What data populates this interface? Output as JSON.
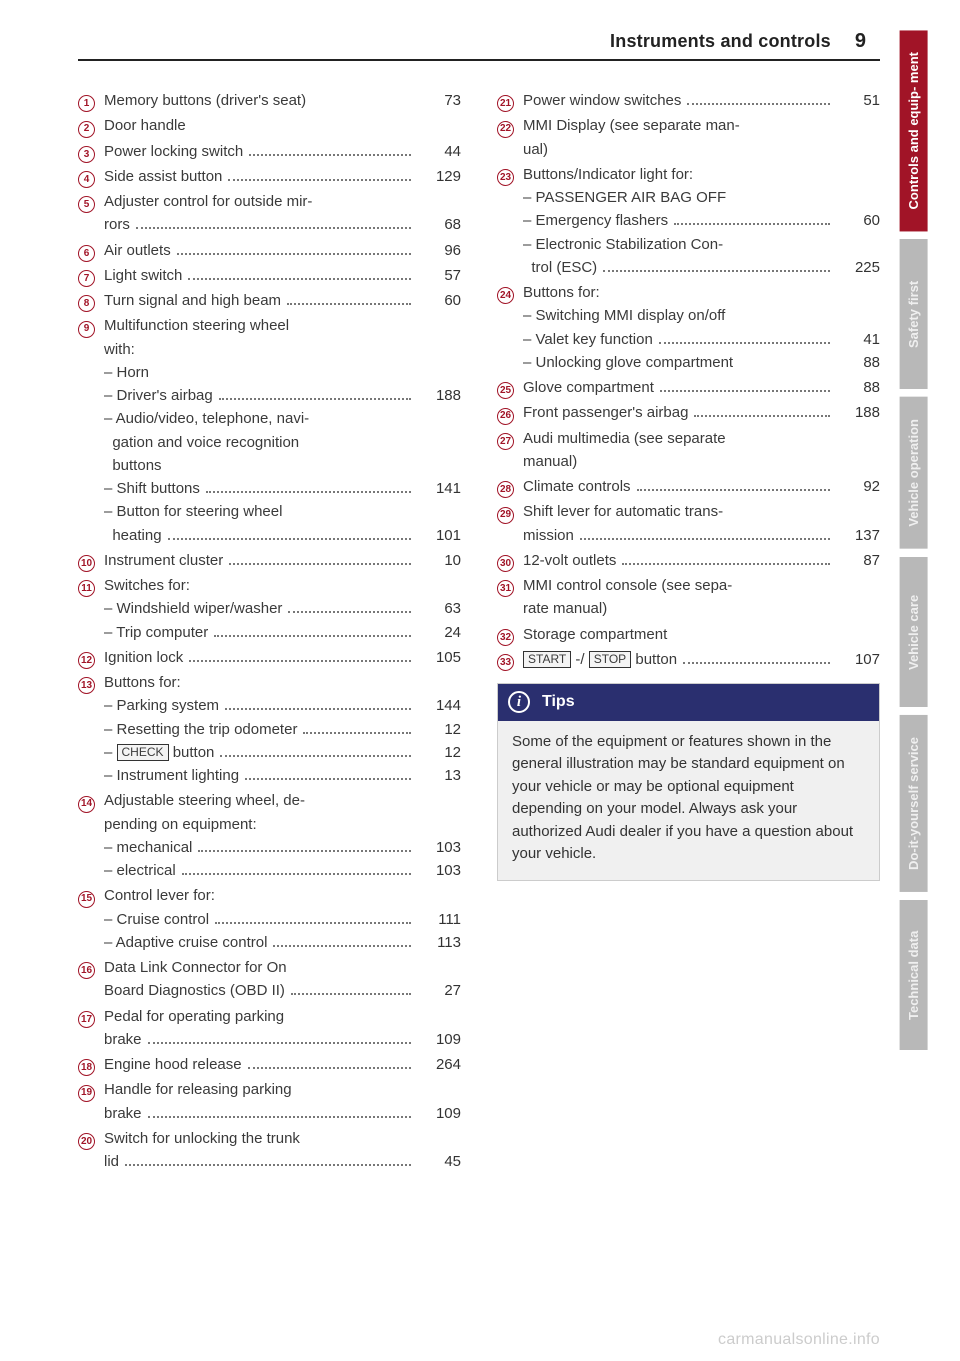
{
  "header": {
    "title": "Instruments and controls",
    "page": "9"
  },
  "watermark": "carmanualsonline.info",
  "colors": {
    "accent": "#a11427",
    "tab_inactive_bg": "#b8b8b8",
    "tips_bg": "#2a2f6f"
  },
  "tabs": [
    {
      "label": "Controls and equip-\nment",
      "active": true
    },
    {
      "label": "Safety first",
      "active": false
    },
    {
      "label": "Vehicle operation",
      "active": false
    },
    {
      "label": "Vehicle care",
      "active": false
    },
    {
      "label": "Do-it-yourself\nservice",
      "active": false
    },
    {
      "label": "Technical data",
      "active": false
    }
  ],
  "left": [
    {
      "n": "1",
      "rows": [
        {
          "t": "Memory buttons (driver's seat)",
          "p": "73",
          "nodots": true
        }
      ]
    },
    {
      "n": "2",
      "rows": [
        {
          "t": "Door handle"
        }
      ]
    },
    {
      "n": "3",
      "rows": [
        {
          "t": "Power locking switch",
          "p": "44"
        }
      ]
    },
    {
      "n": "4",
      "rows": [
        {
          "t": "Side assist button",
          "p": "129"
        }
      ]
    },
    {
      "n": "5",
      "rows": [
        {
          "t": "Adjuster control for outside mir-"
        },
        {
          "t": "rors",
          "p": "68"
        }
      ]
    },
    {
      "n": "6",
      "rows": [
        {
          "t": "Air outlets",
          "p": "96"
        }
      ]
    },
    {
      "n": "7",
      "rows": [
        {
          "t": "Light switch",
          "p": "57"
        }
      ]
    },
    {
      "n": "8",
      "rows": [
        {
          "t": "Turn signal and high beam",
          "p": "60"
        }
      ]
    },
    {
      "n": "9",
      "rows": [
        {
          "t": "Multifunction steering wheel"
        },
        {
          "t": "with:"
        },
        {
          "t": "– Horn"
        },
        {
          "t": "– Driver's airbag",
          "p": "188"
        },
        {
          "t": "– Audio/video, telephone, navi-"
        },
        {
          "t": "  gation and voice recognition"
        },
        {
          "t": "  buttons"
        },
        {
          "t": "– Shift buttons",
          "p": "141"
        },
        {
          "t": "– Button for steering wheel"
        },
        {
          "t": "  heating",
          "p": "101"
        }
      ]
    },
    {
      "n": "10",
      "rows": [
        {
          "t": "Instrument cluster",
          "p": "10"
        }
      ]
    },
    {
      "n": "11",
      "rows": [
        {
          "t": "Switches for:"
        },
        {
          "t": "– Windshield wiper/washer",
          "p": "63"
        },
        {
          "t": "– Trip computer",
          "p": "24"
        }
      ]
    },
    {
      "n": "12",
      "rows": [
        {
          "t": "Ignition lock",
          "p": "105"
        }
      ]
    },
    {
      "n": "13",
      "rows": [
        {
          "t": "Buttons for:"
        },
        {
          "t": "– Parking system",
          "p": "144"
        },
        {
          "t": "– Resetting the trip odometer",
          "p": "12"
        },
        {
          "html": "– <span class=\"boxed\">CHECK</span> button",
          "p": "12"
        },
        {
          "t": "– Instrument lighting",
          "p": "13"
        }
      ]
    },
    {
      "n": "14",
      "rows": [
        {
          "t": "Adjustable steering wheel, de-"
        },
        {
          "t": "pending on equipment:"
        },
        {
          "t": "– mechanical",
          "p": "103"
        },
        {
          "t": "– electrical",
          "p": "103"
        }
      ]
    },
    {
      "n": "15",
      "rows": [
        {
          "t": "Control lever for:"
        },
        {
          "t": "– Cruise control",
          "p": "111"
        },
        {
          "t": "– Adaptive cruise control",
          "p": "113"
        }
      ]
    },
    {
      "n": "16",
      "rows": [
        {
          "t": "Data Link Connector for On"
        },
        {
          "t": "Board Diagnostics (OBD II)",
          "p": "27"
        }
      ]
    },
    {
      "n": "17",
      "rows": [
        {
          "t": "Pedal for operating parking"
        },
        {
          "t": "brake",
          "p": "109"
        }
      ]
    },
    {
      "n": "18",
      "rows": [
        {
          "t": "Engine hood release",
          "p": "264"
        }
      ]
    },
    {
      "n": "19",
      "rows": [
        {
          "t": "Handle for releasing parking"
        },
        {
          "t": "brake",
          "p": "109"
        }
      ]
    },
    {
      "n": "20",
      "rows": [
        {
          "t": "Switch for unlocking the trunk"
        },
        {
          "t": "lid",
          "p": "45"
        }
      ]
    }
  ],
  "right": [
    {
      "n": "21",
      "rows": [
        {
          "t": "Power window switches",
          "p": "51"
        }
      ]
    },
    {
      "n": "22",
      "rows": [
        {
          "t": "MMI Display (see separate man-"
        },
        {
          "t": "ual)"
        }
      ]
    },
    {
      "n": "23",
      "rows": [
        {
          "t": "Buttons/Indicator light for:"
        },
        {
          "t": "– PASSENGER AIR BAG OFF"
        },
        {
          "t": "– Emergency flashers",
          "p": "60"
        },
        {
          "t": "– Electronic Stabilization Con-"
        },
        {
          "t": "  trol (ESC)",
          "p": "225"
        }
      ]
    },
    {
      "n": "24",
      "rows": [
        {
          "t": "Buttons for:"
        },
        {
          "t": "– Switching MMI display on/off"
        },
        {
          "t": "– Valet key function",
          "p": "41"
        },
        {
          "t": "– Unlocking glove compartment",
          "p": "88",
          "nodots": true
        }
      ]
    },
    {
      "n": "25",
      "rows": [
        {
          "t": "Glove compartment",
          "p": "88"
        }
      ]
    },
    {
      "n": "26",
      "rows": [
        {
          "t": "Front passenger's airbag",
          "p": "188"
        }
      ]
    },
    {
      "n": "27",
      "rows": [
        {
          "t": "Audi multimedia (see separate"
        },
        {
          "t": "manual)"
        }
      ]
    },
    {
      "n": "28",
      "rows": [
        {
          "t": "Climate controls",
          "p": "92"
        }
      ]
    },
    {
      "n": "29",
      "rows": [
        {
          "t": "Shift lever for automatic trans-"
        },
        {
          "t": "mission",
          "p": "137"
        }
      ]
    },
    {
      "n": "30",
      "rows": [
        {
          "t": "12-volt outlets",
          "p": "87"
        }
      ]
    },
    {
      "n": "31",
      "rows": [
        {
          "t": "MMI control console (see sepa-"
        },
        {
          "t": "rate manual)"
        }
      ]
    },
    {
      "n": "32",
      "rows": [
        {
          "t": "Storage compartment"
        }
      ]
    },
    {
      "n": "33",
      "rows": [
        {
          "html": "<span class=\"boxed\">START</span> -/ <span class=\"boxed\">STOP</span> button",
          "p": "107"
        }
      ]
    }
  ],
  "tips": {
    "heading": "Tips",
    "body": "Some of the equipment or features shown in the general illustration may be standard equipment on your vehicle or may be optional equipment depending on your model. Always ask your authorized Audi dealer if you have a question about your vehicle."
  }
}
